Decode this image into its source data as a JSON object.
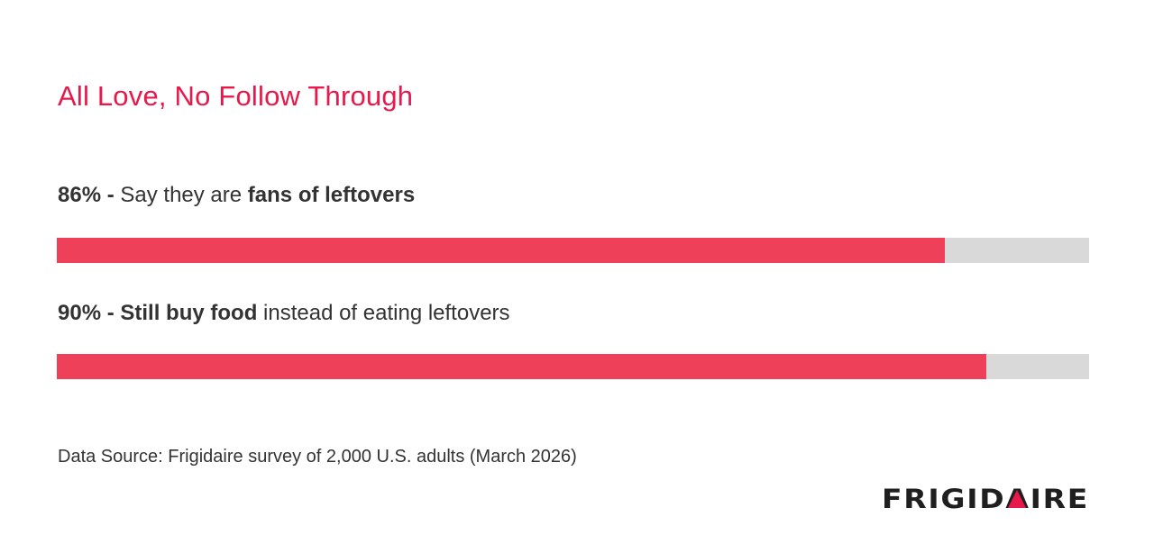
{
  "chart_data": {
    "type": "bar",
    "orientation": "horizontal",
    "title": "All Love, No Follow Through",
    "value_unit": "%",
    "xlim": [
      0,
      100
    ],
    "grid": false,
    "bars": [
      {
        "value": 86,
        "label_percent": "86%",
        "label_dash": " - ",
        "label_plain_before": "Say they are ",
        "label_bold_phrase": "fans of leftovers",
        "label_plain_after": ""
      },
      {
        "value": 90,
        "label_percent": "90%",
        "label_dash": " - ",
        "label_plain_before": "",
        "label_bold_phrase": "Still buy food",
        "label_plain_after": " instead of eating leftovers"
      }
    ],
    "source": "Data Source: Frigidaire survey of 2,000 U.S. adults (March 2026)"
  },
  "brand": {
    "logo_text": "FRIGIDAIRE",
    "logo_mark": "triangle-a-icon"
  },
  "colors": {
    "title": "#e8194a",
    "bar_fill": "#ee4059",
    "bar_track": "#d9d9d9",
    "text": "#333333",
    "logo": "#1f1f1f",
    "logo_accent": "#e8194a"
  }
}
